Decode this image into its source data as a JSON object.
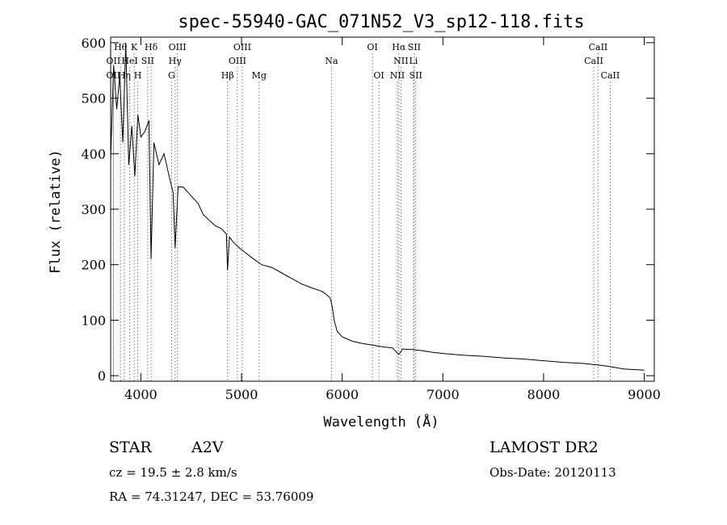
{
  "chart_data": {
    "type": "line",
    "title": "spec-55940-GAC_071N52_V3_sp12-118.fits",
    "xlabel": "Wavelength (Å)",
    "ylabel": "Flux (relative)",
    "xlim": [
      3700,
      9100
    ],
    "ylim": [
      -10,
      610
    ],
    "xticks": [
      4000,
      5000,
      6000,
      7000,
      8000,
      9000
    ],
    "yticks": [
      0,
      100,
      200,
      300,
      400,
      500,
      600
    ],
    "grid": false,
    "series": [
      {
        "x": [
          3700,
          3730,
          3760,
          3790,
          3820,
          3850,
          3880,
          3910,
          3940,
          3970,
          4000,
          4040,
          4080,
          4101,
          4130,
          4180,
          4230,
          4280,
          4320,
          4340,
          4370,
          4420,
          4470,
          4520,
          4570,
          4620,
          4680,
          4740,
          4800,
          4850,
          4861,
          4880,
          4920,
          4980,
          5050,
          5120,
          5200,
          5300,
          5400,
          5500,
          5600,
          5700,
          5800,
          5850,
          5880,
          5900,
          5920,
          5950,
          6000,
          6100,
          6200,
          6300,
          6400,
          6500,
          6563,
          6600,
          6700,
          6800,
          6900,
          7000,
          7200,
          7400,
          7600,
          7800,
          8000,
          8200,
          8400,
          8500,
          8600,
          8700,
          8800,
          9000
        ],
        "y": [
          390,
          560,
          480,
          540,
          420,
          600,
          380,
          450,
          360,
          470,
          430,
          440,
          460,
          210,
          420,
          380,
          400,
          360,
          330,
          230,
          340,
          340,
          330,
          320,
          310,
          290,
          280,
          270,
          265,
          255,
          190,
          250,
          240,
          230,
          220,
          210,
          200,
          195,
          185,
          175,
          165,
          158,
          152,
          145,
          140,
          125,
          100,
          80,
          70,
          62,
          58,
          55,
          52,
          50,
          38,
          48,
          47,
          45,
          42,
          40,
          37,
          35,
          32,
          30,
          27,
          24,
          22,
          20,
          18,
          15,
          12,
          10
        ]
      }
    ],
    "line_markers": [
      {
        "label": "OII",
        "wavelength": 3727,
        "row": 2
      },
      {
        "label": "Hθ",
        "wavelength": 3798,
        "row": 0
      },
      {
        "label": "OII",
        "wavelength": 3727,
        "row": 1
      },
      {
        "label": "HeI",
        "wavelength": 3889,
        "row": 1
      },
      {
        "label": "K",
        "wavelength": 3934,
        "row": 0
      },
      {
        "label": "Hη",
        "wavelength": 3835,
        "row": 2
      },
      {
        "label": "SII",
        "wavelength": 4068,
        "row": 1
      },
      {
        "label": "H",
        "wavelength": 3969,
        "row": 2
      },
      {
        "label": "Hδ",
        "wavelength": 4102,
        "row": 0
      },
      {
        "label": "OIII",
        "wavelength": 4363,
        "row": 0
      },
      {
        "label": "Hγ",
        "wavelength": 4340,
        "row": 1
      },
      {
        "label": "G",
        "wavelength": 4305,
        "row": 2
      },
      {
        "label": "OIII",
        "wavelength": 5007,
        "row": 0
      },
      {
        "label": "OIII",
        "wavelength": 4959,
        "row": 1
      },
      {
        "label": "Hβ",
        "wavelength": 4861,
        "row": 2
      },
      {
        "label": "Mg",
        "wavelength": 5175,
        "row": 2
      },
      {
        "label": "Na",
        "wavelength": 5893,
        "row": 1
      },
      {
        "label": "OI",
        "wavelength": 6300,
        "row": 0
      },
      {
        "label": "OI",
        "wavelength": 6364,
        "row": 2
      },
      {
        "label": "Hα",
        "wavelength": 6563,
        "row": 0
      },
      {
        "label": "SII",
        "wavelength": 6716,
        "row": 0
      },
      {
        "label": "NII",
        "wavelength": 6583,
        "row": 1
      },
      {
        "label": "Li",
        "wavelength": 6708,
        "row": 1
      },
      {
        "label": "NII",
        "wavelength": 6548,
        "row": 2
      },
      {
        "label": "SII",
        "wavelength": 6731,
        "row": 2
      },
      {
        "label": "CaII",
        "wavelength": 8542,
        "row": 0
      },
      {
        "label": "CaII",
        "wavelength": 8498,
        "row": 1
      },
      {
        "label": "CaII",
        "wavelength": 8662,
        "row": 2
      }
    ]
  },
  "info": {
    "class_label": "STAR",
    "subclass": "A2V",
    "survey": "LAMOST DR2",
    "cz": "cz = 19.5 ± 2.8 km/s",
    "obs_date": "Obs-Date: 20120113",
    "coords": "RA =  74.31247, DEC =  53.76009"
  }
}
